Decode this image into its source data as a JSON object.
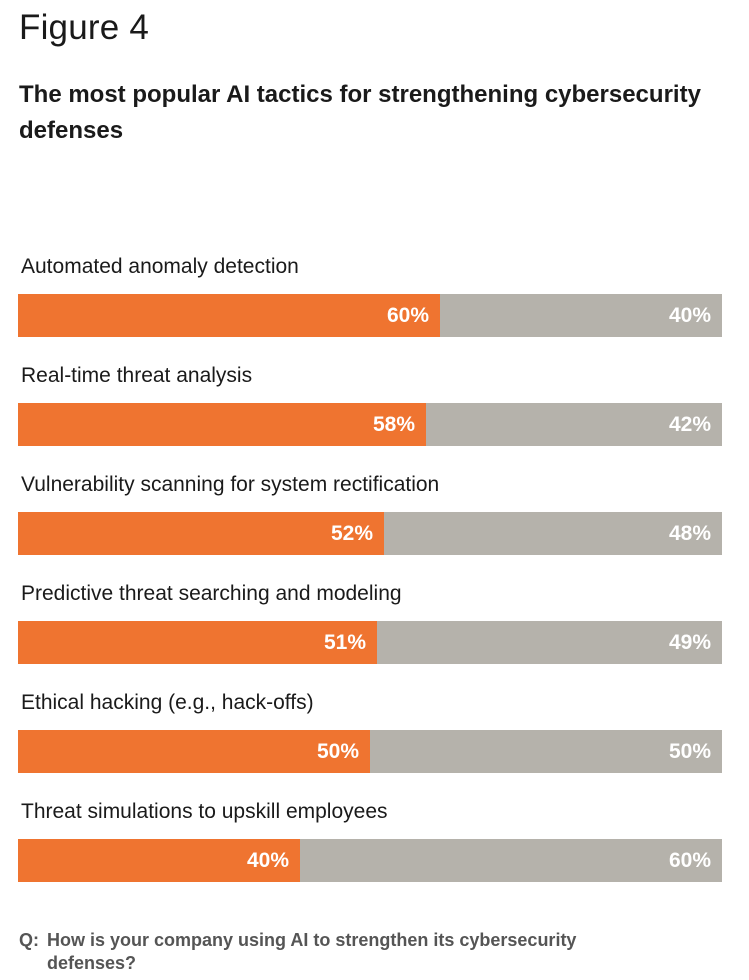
{
  "figure_label": "Figure 4",
  "chart_data": {
    "type": "bar",
    "title": "The most popular AI tactics for strengthening cybersecurity defenses",
    "stacked": true,
    "orientation": "horizontal",
    "categories": [
      "Automated anomaly detection",
      "Real-time threat analysis",
      "Vulnerability scanning for system rectification",
      "Predictive threat searching and modeling",
      "Ethical hacking (e.g., hack-offs)",
      "Threat simulations to upskill employees"
    ],
    "series": [
      {
        "values": [
          60,
          58,
          52,
          51,
          50,
          40
        ],
        "labels": [
          "60%",
          "58%",
          "52%",
          "51%",
          "50%",
          "40%"
        ]
      },
      {
        "values": [
          40,
          42,
          48,
          49,
          50,
          60
        ],
        "labels": [
          "40%",
          "42%",
          "48%",
          "49%",
          "50%",
          "60%"
        ]
      }
    ],
    "xlim": [
      0,
      100
    ]
  },
  "colors": {
    "primary": "#ef7430",
    "remainder": "#b5b2ab"
  },
  "footnote": {
    "prefix": "Q:",
    "text": "How is your company using AI to strengthen its cybersecurity defenses?"
  }
}
